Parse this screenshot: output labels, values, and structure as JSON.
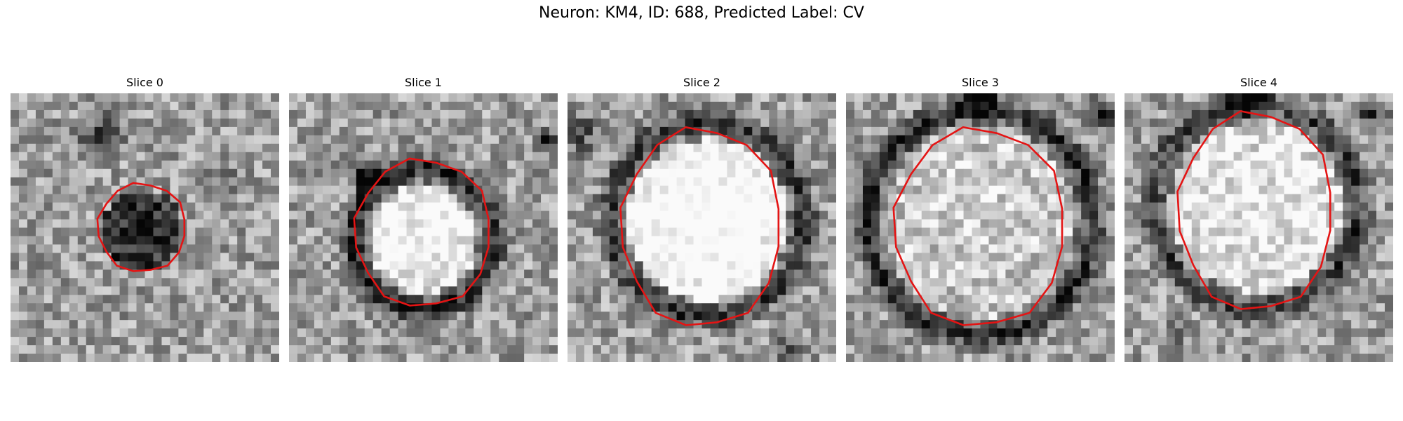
{
  "figure": {
    "title": "Neuron: KM4, ID: 688, Predicted Label: CV"
  },
  "slices": [
    {
      "label": "Slice 0"
    },
    {
      "label": "Slice 1"
    },
    {
      "label": "Slice 2"
    },
    {
      "label": "Slice 3"
    },
    {
      "label": "Slice 4"
    }
  ],
  "colors": {
    "contour": "#e41414",
    "colormap": "grayscale"
  }
}
